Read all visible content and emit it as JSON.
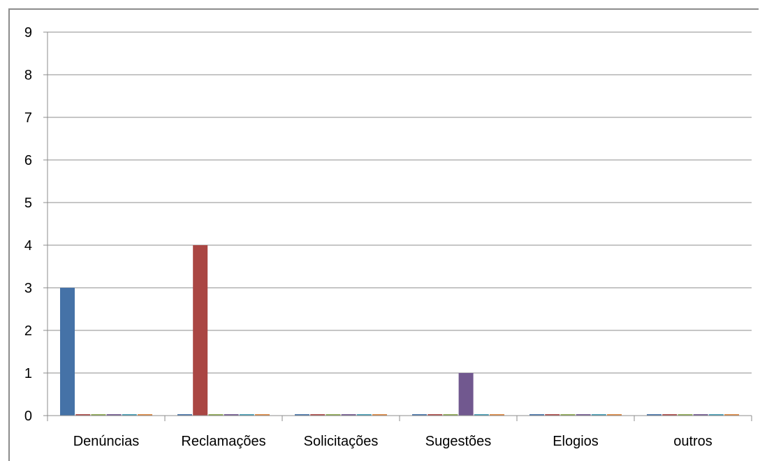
{
  "chart_data": {
    "type": "bar",
    "categories": [
      "Denúncias",
      "Reclamações",
      "Solicitações",
      "Sugestões",
      "Elogios",
      "outros"
    ],
    "series": [
      {
        "values": [
          3,
          0,
          0,
          0,
          0,
          0
        ],
        "color": "#4572A7"
      },
      {
        "values": [
          0,
          4,
          0,
          0,
          0,
          0
        ],
        "color": "#AA4643"
      },
      {
        "values": [
          0,
          0,
          0,
          0,
          0,
          0
        ],
        "color": "#89A54E"
      },
      {
        "values": [
          0,
          0,
          0,
          1,
          0,
          0
        ],
        "color": "#71588F"
      },
      {
        "values": [
          0,
          0,
          0,
          0,
          0,
          0
        ],
        "color": "#4198AF"
      },
      {
        "values": [
          0,
          0,
          0,
          0,
          0,
          0
        ],
        "color": "#DB843D"
      }
    ],
    "yticks": [
      "0",
      "1",
      "2",
      "3",
      "4",
      "5",
      "6",
      "7",
      "8",
      "9"
    ],
    "ylim": [
      0,
      9
    ],
    "grid": true,
    "title": "",
    "xlabel": "",
    "ylabel": ""
  }
}
